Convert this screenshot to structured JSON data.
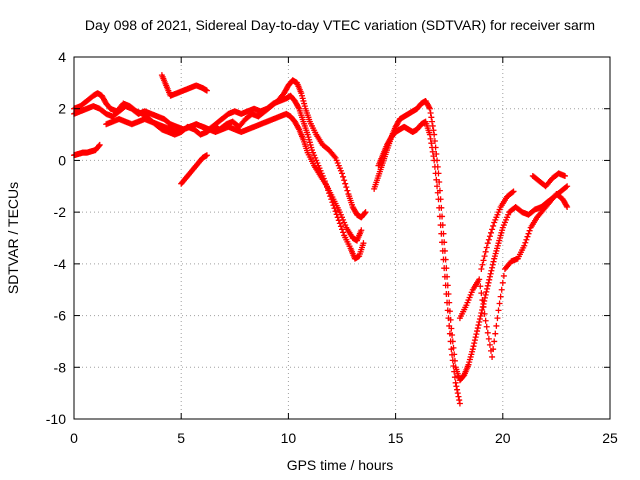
{
  "chart_data": {
    "type": "scatter",
    "title": "Day 098 of 2021, Sidereal Day-to-day VTEC variation (SDTVAR) for receiver sarm",
    "xlabel": "GPS time / hours",
    "ylabel": "SDTVAR / TECUs",
    "xlim": [
      0,
      25
    ],
    "ylim": [
      -10,
      4
    ],
    "xticks": [
      0,
      5,
      10,
      15,
      20,
      25
    ],
    "yticks": [
      -10,
      -8,
      -6,
      -4,
      -2,
      0,
      2,
      4
    ],
    "grid": true,
    "marker": "+",
    "color": "#ff0000",
    "series": [
      {
        "x": [
          0.0,
          0.3,
          0.6,
          0.9,
          1.1,
          1.3,
          1.5,
          1.7,
          2.0,
          2.3,
          2.6,
          2.9,
          3.2,
          3.5,
          3.8,
          4.1,
          4.4,
          4.7,
          5.0,
          5.3,
          5.6,
          5.9,
          6.2,
          6.5,
          6.8,
          7.1,
          7.4,
          7.7,
          8.0,
          8.3,
          8.6,
          8.9,
          9.2,
          9.5,
          9.8,
          10.0,
          10.2,
          10.4,
          10.6,
          10.8,
          11.0,
          11.3,
          11.6,
          11.9,
          12.2,
          12.5,
          12.8,
          13.0,
          13.2,
          13.4,
          13.6
        ],
        "y": [
          2.0,
          2.1,
          2.3,
          2.5,
          2.6,
          2.5,
          2.2,
          2.0,
          1.9,
          2.2,
          2.1,
          1.9,
          1.8,
          1.6,
          1.4,
          1.2,
          1.1,
          1.0,
          1.1,
          1.3,
          1.2,
          1.0,
          1.1,
          1.3,
          1.2,
          1.4,
          1.5,
          1.3,
          1.6,
          1.8,
          1.7,
          1.9,
          2.1,
          2.3,
          2.6,
          2.9,
          3.1,
          3.0,
          2.6,
          2.0,
          1.5,
          1.0,
          0.6,
          0.4,
          0.1,
          -0.5,
          -1.3,
          -1.8,
          -2.1,
          -2.2,
          -2.0
        ]
      },
      {
        "x": [
          0.0,
          0.3,
          0.6,
          0.9,
          1.2,
          1.5,
          1.8,
          2.1,
          2.4,
          2.7,
          3.0,
          3.3,
          3.6,
          3.9,
          4.2,
          4.5,
          4.8,
          5.1,
          5.4,
          5.7,
          6.0,
          6.3,
          6.6,
          6.9,
          7.2,
          7.5,
          7.8,
          8.1,
          8.4,
          8.7,
          9.0,
          9.3,
          9.6,
          9.9,
          10.1,
          10.3,
          10.5,
          10.7,
          10.9,
          11.1,
          11.4,
          11.7,
          12.0,
          12.3,
          12.6,
          12.9,
          13.1,
          13.3,
          13.5
        ],
        "y": [
          1.8,
          1.9,
          2.0,
          2.1,
          2.0,
          1.8,
          1.7,
          1.9,
          2.1,
          2.0,
          1.8,
          1.9,
          1.8,
          1.7,
          1.6,
          1.4,
          1.3,
          1.2,
          1.3,
          1.4,
          1.3,
          1.2,
          1.4,
          1.6,
          1.8,
          1.9,
          1.8,
          1.9,
          2.0,
          1.9,
          2.0,
          2.2,
          2.3,
          2.4,
          2.5,
          2.3,
          2.0,
          1.5,
          1.0,
          0.4,
          -0.2,
          -0.8,
          -1.5,
          -2.2,
          -2.9,
          -3.4,
          -3.8,
          -3.7,
          -3.2
        ]
      },
      {
        "x": [
          1.5,
          1.8,
          2.1,
          2.4,
          2.7,
          3.0,
          3.3,
          3.6,
          3.9,
          4.2,
          4.5,
          4.8,
          5.1,
          5.4,
          5.7,
          6.0,
          6.3,
          6.6,
          6.9,
          7.2,
          7.5,
          7.8,
          8.1,
          8.4,
          8.7,
          9.0,
          9.3,
          9.6,
          9.9,
          10.1,
          10.3,
          10.5,
          10.7,
          10.9,
          11.2,
          11.5,
          11.8,
          12.1,
          12.4,
          12.7,
          13.0,
          13.2,
          13.4
        ],
        "y": [
          1.4,
          1.5,
          1.6,
          1.5,
          1.4,
          1.5,
          1.6,
          1.5,
          1.4,
          1.3,
          1.2,
          1.1,
          1.2,
          1.3,
          1.4,
          1.3,
          1.2,
          1.1,
          1.2,
          1.3,
          1.2,
          1.1,
          1.2,
          1.3,
          1.4,
          1.5,
          1.6,
          1.7,
          1.8,
          1.7,
          1.5,
          1.2,
          0.8,
          0.3,
          -0.2,
          -0.6,
          -1.0,
          -1.5,
          -2.0,
          -2.6,
          -3.0,
          -3.1,
          -2.7
        ]
      },
      {
        "x": [
          0.0,
          0.2,
          0.4,
          0.6,
          0.8,
          1.0,
          1.2
        ],
        "y": [
          0.2,
          0.25,
          0.3,
          0.3,
          0.35,
          0.4,
          0.6
        ]
      },
      {
        "x": [
          4.1,
          4.3,
          4.5,
          4.8,
          5.1,
          5.4,
          5.7,
          6.0,
          6.2
        ],
        "y": [
          3.3,
          2.9,
          2.5,
          2.6,
          2.7,
          2.8,
          2.9,
          2.8,
          2.7
        ]
      },
      {
        "x": [
          5.0,
          5.2,
          5.4,
          5.6,
          5.8,
          6.0,
          6.2
        ],
        "y": [
          -0.9,
          -0.7,
          -0.5,
          -0.3,
          -0.1,
          0.1,
          0.2
        ]
      },
      {
        "x": [
          14.0,
          14.2,
          14.4,
          14.6,
          14.8,
          15.0,
          15.2,
          15.4,
          15.6,
          15.8,
          16.0,
          16.2,
          16.4,
          16.6,
          16.8,
          17.0,
          17.2,
          17.4,
          17.6,
          17.8,
          18.0,
          18.2,
          18.4,
          18.6,
          18.8,
          19.0,
          19.2,
          19.4,
          19.6,
          19.8,
          20.0,
          20.3,
          20.6,
          20.9,
          21.2,
          21.5,
          21.8,
          22.1,
          22.4,
          22.7,
          23.0
        ],
        "y": [
          -1.1,
          -0.6,
          -0.1,
          0.4,
          0.9,
          1.3,
          1.6,
          1.7,
          1.8,
          1.9,
          2.0,
          2.2,
          2.3,
          2.0,
          1.0,
          -0.5,
          -2.5,
          -4.5,
          -6.5,
          -8.0,
          -8.5,
          -8.3,
          -7.9,
          -7.3,
          -6.6,
          -5.9,
          -5.2,
          -4.5,
          -3.8,
          -3.2,
          -2.6,
          -2.0,
          -1.8,
          -2.0,
          -2.1,
          -1.9,
          -1.8,
          -1.6,
          -1.4,
          -1.2,
          -1.0
        ]
      },
      {
        "x": [
          14.2,
          14.4,
          14.6,
          14.8,
          15.0,
          15.2,
          15.4,
          15.6,
          15.8,
          16.0,
          16.2,
          16.4,
          16.6,
          16.8,
          17.0,
          17.2,
          17.4,
          17.6,
          17.8,
          18.0
        ],
        "y": [
          -0.2,
          0.2,
          0.6,
          0.9,
          1.1,
          1.2,
          1.3,
          1.2,
          1.1,
          1.2,
          1.4,
          1.5,
          1.0,
          0.0,
          -1.5,
          -3.5,
          -5.5,
          -7.3,
          -8.6,
          -9.4
        ]
      },
      {
        "x": [
          18.0,
          18.3,
          18.6,
          18.9,
          19.2,
          19.5,
          19.8,
          20.1,
          20.4,
          20.7,
          21.0,
          21.3,
          21.6,
          21.9,
          22.2,
          22.5,
          22.8,
          23.0
        ],
        "y": [
          -6.1,
          -5.6,
          -5.0,
          -4.6,
          -6.2,
          -7.6,
          -5.8,
          -4.2,
          -3.9,
          -3.8,
          -3.3,
          -2.6,
          -2.2,
          -1.9,
          -1.6,
          -1.3,
          -1.5,
          -1.8
        ]
      },
      {
        "x": [
          19.0,
          19.3,
          19.6,
          19.9,
          20.2,
          20.5
        ],
        "y": [
          -4.2,
          -3.2,
          -2.4,
          -1.8,
          -1.4,
          -1.2
        ]
      },
      {
        "x": [
          21.4,
          21.7,
          22.0,
          22.3,
          22.6,
          22.9
        ],
        "y": [
          -0.6,
          -0.8,
          -1.0,
          -0.7,
          -0.5,
          -0.6
        ]
      }
    ]
  }
}
